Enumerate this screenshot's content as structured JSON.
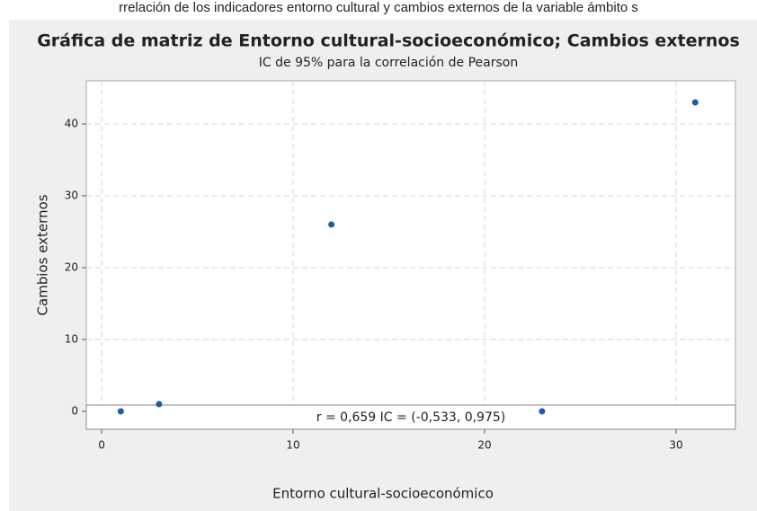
{
  "caption": "rrelación de los indicadores entorno cultural y cambios externos de la variable ámbito s",
  "chart_data": {
    "type": "scatter",
    "title": "Gráfica de matriz de Entorno cultural-socioeconómico; Cambios externos",
    "subtitle": "IC de 95% para la correlación de Pearson",
    "x_label": "Entorno cultural-socioeconómico",
    "y_label": "Cambios externos",
    "annotation": "r = 0,659  IC = (-0,533, 0,975)",
    "series": [
      {
        "name": "Cambios externos",
        "color": "#1f5ca8",
        "x": [
          1,
          3,
          12,
          23,
          31
        ],
        "values": [
          0,
          1,
          26,
          0,
          43
        ]
      }
    ],
    "xlim": [
      -0.8,
      33.1
    ],
    "xticks": [
      0,
      10,
      20,
      30
    ],
    "ylim": [
      -2.5,
      46
    ],
    "yticks": [
      0,
      10,
      20,
      30,
      40
    ],
    "grid": true
  }
}
